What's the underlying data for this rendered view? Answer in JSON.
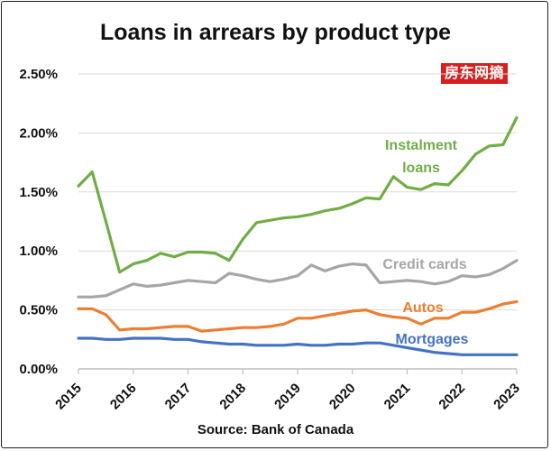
{
  "title": "Loans in arrears by product type",
  "watermark": "房东网摘",
  "source": "Source: Bank of Canada",
  "colors": {
    "instalment": "#70ad47",
    "credit": "#a6a6a6",
    "autos": "#ed7d31",
    "mortgages": "#4472c4",
    "grid": "#d9d9d9",
    "axis": "#bfbfbf"
  },
  "chart_data": {
    "type": "line",
    "title": "Loans in arrears by product type",
    "xlim": [
      2015,
      2023
    ],
    "ylim": [
      0,
      0.025
    ],
    "yticks": [
      0,
      0.005,
      0.01,
      0.015,
      0.02,
      0.025
    ],
    "yticklabels": [
      "0.00%",
      "0.50%",
      "1.00%",
      "1.50%",
      "2.00%",
      "2.50%"
    ],
    "xticks": [
      2015,
      2016,
      2017,
      2018,
      2019,
      2020,
      2021,
      2022,
      2023
    ],
    "xticklabels": [
      "2015",
      "2016",
      "2017",
      "2018",
      "2019",
      "2020",
      "2021",
      "2022",
      "2023"
    ],
    "grid": true,
    "series": [
      {
        "name": "Instalment loans",
        "label_lines": [
          "Instalment",
          "loans"
        ],
        "color": "#70ad47",
        "x": [
          2015.0,
          2015.25,
          2015.5,
          2015.75,
          2016.0,
          2016.25,
          2016.5,
          2016.75,
          2017.0,
          2017.25,
          2017.5,
          2017.75,
          2018.0,
          2018.25,
          2018.5,
          2018.75,
          2019.0,
          2019.25,
          2019.5,
          2019.75,
          2020.0,
          2020.25,
          2020.5,
          2020.75,
          2021.0,
          2021.25,
          2021.5,
          2021.75,
          2022.0,
          2022.25,
          2022.5,
          2022.75,
          2023.0
        ],
        "y": [
          0.0155,
          0.0167,
          0.0125,
          0.0082,
          0.0089,
          0.0092,
          0.0098,
          0.0095,
          0.0099,
          0.0099,
          0.0098,
          0.0092,
          0.011,
          0.0124,
          0.0126,
          0.0128,
          0.0129,
          0.0131,
          0.0134,
          0.0136,
          0.014,
          0.0145,
          0.0144,
          0.0163,
          0.0154,
          0.0152,
          0.0157,
          0.0156,
          0.0168,
          0.0182,
          0.0189,
          0.019,
          0.0213
        ]
      },
      {
        "name": "Credit cards",
        "label_lines": [
          "Credit cards"
        ],
        "color": "#a6a6a6",
        "x": [
          2015.0,
          2015.25,
          2015.5,
          2015.75,
          2016.0,
          2016.25,
          2016.5,
          2016.75,
          2017.0,
          2017.25,
          2017.5,
          2017.75,
          2018.0,
          2018.25,
          2018.5,
          2018.75,
          2019.0,
          2019.25,
          2019.5,
          2019.75,
          2020.0,
          2020.25,
          2020.5,
          2020.75,
          2021.0,
          2021.25,
          2021.5,
          2021.75,
          2022.0,
          2022.25,
          2022.5,
          2022.75,
          2023.0
        ],
        "y": [
          0.0061,
          0.0061,
          0.0062,
          0.0067,
          0.0072,
          0.007,
          0.0071,
          0.0073,
          0.0075,
          0.0074,
          0.0073,
          0.0081,
          0.0079,
          0.0076,
          0.0074,
          0.0076,
          0.0079,
          0.0088,
          0.0083,
          0.0087,
          0.0089,
          0.0088,
          0.0073,
          0.0074,
          0.0075,
          0.0074,
          0.0072,
          0.0074,
          0.0079,
          0.0078,
          0.008,
          0.0085,
          0.0092
        ]
      },
      {
        "name": "Autos",
        "label_lines": [
          "Autos"
        ],
        "color": "#ed7d31",
        "x": [
          2015.0,
          2015.25,
          2015.5,
          2015.75,
          2016.0,
          2016.25,
          2016.5,
          2016.75,
          2017.0,
          2017.25,
          2017.5,
          2017.75,
          2018.0,
          2018.25,
          2018.5,
          2018.75,
          2019.0,
          2019.25,
          2019.5,
          2019.75,
          2020.0,
          2020.25,
          2020.5,
          2020.75,
          2021.0,
          2021.25,
          2021.5,
          2021.75,
          2022.0,
          2022.25,
          2022.5,
          2022.75,
          2023.0
        ],
        "y": [
          0.0051,
          0.0051,
          0.0046,
          0.0033,
          0.0034,
          0.0034,
          0.0035,
          0.0036,
          0.0036,
          0.0032,
          0.0033,
          0.0034,
          0.0035,
          0.0035,
          0.0036,
          0.0038,
          0.0043,
          0.0043,
          0.0045,
          0.0047,
          0.0049,
          0.005,
          0.0046,
          0.0044,
          0.0043,
          0.0038,
          0.0043,
          0.0043,
          0.0048,
          0.0048,
          0.0051,
          0.0055,
          0.0057
        ]
      },
      {
        "name": "Mortgages",
        "label_lines": [
          "Mortgages"
        ],
        "color": "#4472c4",
        "x": [
          2015.0,
          2015.25,
          2015.5,
          2015.75,
          2016.0,
          2016.25,
          2016.5,
          2016.75,
          2017.0,
          2017.25,
          2017.5,
          2017.75,
          2018.0,
          2018.25,
          2018.5,
          2018.75,
          2019.0,
          2019.25,
          2019.5,
          2019.75,
          2020.0,
          2020.25,
          2020.5,
          2020.75,
          2021.0,
          2021.25,
          2021.5,
          2021.75,
          2022.0,
          2022.25,
          2022.5,
          2022.75,
          2023.0
        ],
        "y": [
          0.0026,
          0.0026,
          0.0025,
          0.0025,
          0.0026,
          0.0026,
          0.0026,
          0.0025,
          0.0025,
          0.0023,
          0.0022,
          0.0021,
          0.0021,
          0.002,
          0.002,
          0.002,
          0.0021,
          0.002,
          0.002,
          0.0021,
          0.0021,
          0.0022,
          0.0022,
          0.002,
          0.0018,
          0.0016,
          0.0014,
          0.0013,
          0.0012,
          0.0012,
          0.0012,
          0.0012,
          0.0012
        ]
      }
    ]
  }
}
